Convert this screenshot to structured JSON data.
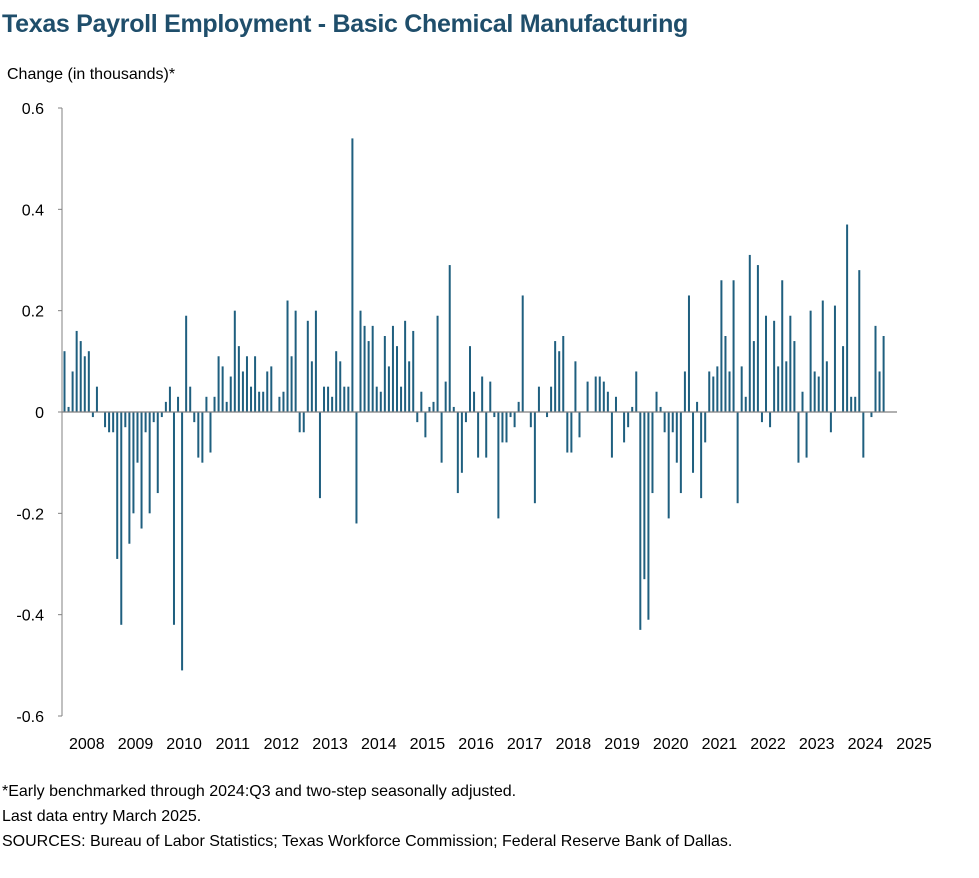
{
  "title": "Texas Payroll Employment - Basic Chemical Manufacturing",
  "ylabel": "Change (in thousands)*",
  "footnotes": {
    "note1": "*Early benchmarked through 2024:Q3 and two-step seasonally adjusted.",
    "note2": "Last data entry March 2025.",
    "note3": "SOURCES: Bureau of Labor Statistics; Texas Workforce Commission; Federal Reserve Bank of Dallas."
  },
  "colors": {
    "bar": "#1f5f7f",
    "axis": "#808080",
    "title": "#1f4e6b"
  },
  "chart_data": {
    "type": "bar",
    "xlabel": "",
    "ylabel": "Change (in thousands)*",
    "ylim": [
      -0.6,
      0.6
    ],
    "y_ticks": [
      "0.6",
      "0.4",
      "0.2",
      "0",
      "-0.2",
      "-0.4",
      "-0.6"
    ],
    "y_tick_values": [
      0.6,
      0.4,
      0.2,
      0,
      -0.2,
      -0.4,
      -0.6
    ],
    "x_tick_labels": [
      "2008",
      "2009",
      "2010",
      "2011",
      "2012",
      "2013",
      "2014",
      "2015",
      "2016",
      "2017",
      "2018",
      "2019",
      "2020",
      "2021",
      "2022",
      "2023",
      "2024",
      "2025"
    ],
    "start": "2008-01",
    "end": "2025-03",
    "frequency": "monthly",
    "grid": false,
    "series": [
      {
        "values": [
          0.12,
          0.01,
          0.08,
          0.16,
          0.14,
          0.11,
          0.12,
          -0.01,
          0.05,
          0.0,
          -0.03,
          -0.04,
          -0.04,
          -0.29,
          -0.42,
          -0.03,
          -0.26,
          -0.2,
          -0.1,
          -0.23,
          -0.04,
          -0.2,
          -0.02,
          -0.16,
          -0.01,
          0.02,
          0.05,
          -0.42,
          0.03,
          -0.51,
          0.19,
          0.05,
          -0.02,
          -0.09,
          -0.1,
          0.03,
          -0.08,
          0.03,
          0.11,
          0.09,
          0.02,
          0.07,
          0.2,
          0.13,
          0.08,
          0.11,
          0.05,
          0.11,
          0.04,
          0.04,
          0.08,
          0.09,
          0.0,
          0.03,
          0.04,
          0.22,
          0.11,
          0.2,
          -0.04,
          -0.04,
          0.18,
          0.1,
          0.2,
          -0.17,
          0.05,
          0.05,
          0.03,
          0.12,
          0.1,
          0.05,
          0.05,
          0.54,
          -0.22,
          0.2,
          0.17,
          0.14,
          0.17,
          0.05,
          0.04,
          0.15,
          0.09,
          0.17,
          0.13,
          0.05,
          0.18,
          0.1,
          0.16,
          -0.02,
          0.04,
          -0.05,
          0.01,
          0.02,
          0.19,
          -0.1,
          0.06,
          0.29,
          0.01,
          -0.16,
          -0.12,
          -0.02,
          0.13,
          0.04,
          -0.09,
          0.07,
          -0.09,
          0.06,
          -0.01,
          -0.21,
          -0.06,
          -0.06,
          -0.01,
          -0.03,
          0.02,
          0.23,
          0.0,
          -0.03,
          -0.18,
          0.05,
          0.0,
          -0.01,
          0.05,
          0.14,
          0.12,
          0.15,
          -0.08,
          -0.08,
          0.1,
          -0.05,
          0.0,
          0.06,
          0.0,
          0.07,
          0.07,
          0.06,
          0.04,
          -0.09,
          0.03,
          0.0,
          -0.06,
          -0.03,
          0.01,
          0.08,
          -0.43,
          -0.33,
          -0.41,
          -0.16,
          0.04,
          0.01,
          -0.04,
          -0.21,
          -0.04,
          -0.1,
          -0.16,
          0.08,
          0.23,
          -0.12,
          0.02,
          -0.17,
          -0.06,
          0.08,
          0.07,
          0.09,
          0.26,
          0.15,
          0.08,
          0.26,
          -0.18,
          0.09,
          0.03,
          0.31,
          0.14,
          0.29,
          -0.02,
          0.19,
          -0.03,
          0.18,
          0.09,
          0.26,
          0.1,
          0.19,
          0.14,
          -0.1,
          0.04,
          -0.09,
          0.2,
          0.08,
          0.07,
          0.22,
          0.1,
          -0.04,
          0.21,
          0.0,
          0.13,
          0.37,
          0.03,
          0.03,
          0.28,
          -0.09,
          0.0,
          -0.01,
          0.17,
          0.08,
          0.15
        ]
      }
    ]
  }
}
